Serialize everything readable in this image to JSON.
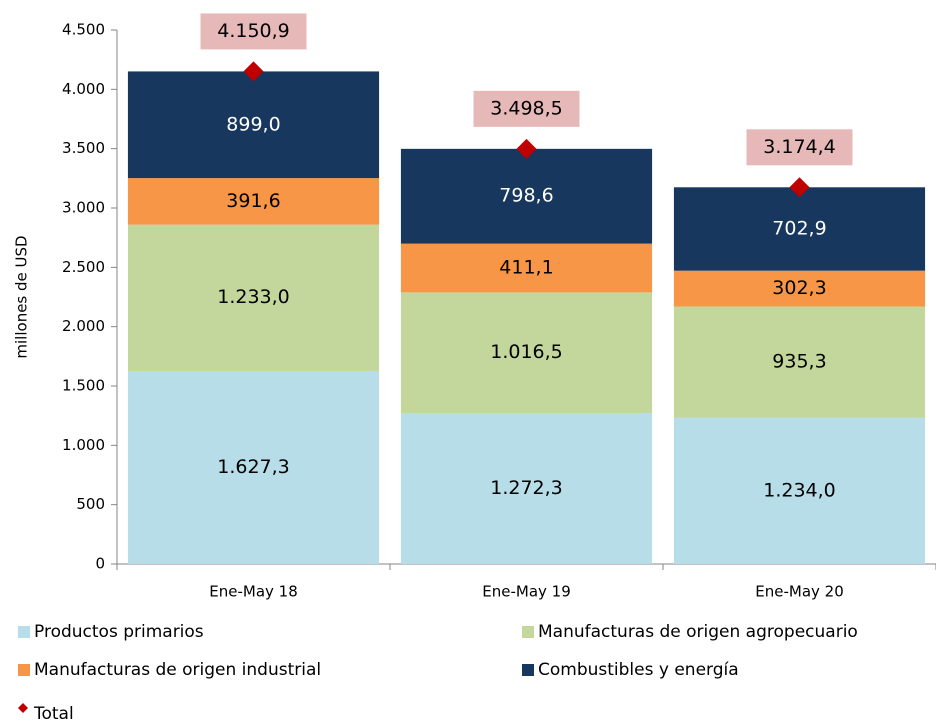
{
  "chart_data": {
    "type": "bar",
    "stacked": true,
    "y_label": "millones de USD",
    "categories": [
      "Ene-May 18",
      "Ene-May 19",
      "Ene-May 20"
    ],
    "ylim": [
      0,
      4500
    ],
    "yticks": [
      0,
      500,
      {
        "value": 1000,
        "label": "1.000"
      },
      {
        "value": 1500,
        "label": "1.500"
      },
      {
        "value": 2000,
        "label": "2.000"
      },
      {
        "value": 2500,
        "label": "2.500"
      },
      {
        "value": 3000,
        "label": "3.000"
      },
      {
        "value": 3500,
        "label": "3.500"
      },
      {
        "value": 4000,
        "label": "4.000"
      },
      {
        "value": 4500,
        "label": "4.500"
      }
    ],
    "series": [
      {
        "name": "Productos primarios",
        "color": "#b7dde8",
        "values": [
          1627.3,
          1272.3,
          1234.0
        ],
        "value_labels": [
          "1.627,3",
          "1.272,3",
          "1.234,0"
        ]
      },
      {
        "name": "Manufacturas de origen agropecuario",
        "color": "#c3d69b",
        "values": [
          1233.0,
          1016.5,
          935.3
        ],
        "value_labels": [
          "1.233,0",
          "1.016,5",
          "935,3"
        ]
      },
      {
        "name": "Manufacturas de origen industrial",
        "color": "#f79646",
        "values": [
          391.6,
          411.1,
          302.3
        ],
        "value_labels": [
          "391,6",
          "411,1",
          "302,3"
        ]
      },
      {
        "name": "Combustibles y energía",
        "color": "#17375e",
        "values": [
          899.0,
          798.6,
          702.9
        ],
        "value_labels": [
          "899,0",
          "798,6",
          "702,9"
        ]
      },
      {
        "name": "Total",
        "color": "#c00000",
        "marker": "diamond",
        "label_box": "#e6b9b8",
        "values": [
          4150.9,
          3498.5,
          3174.4
        ],
        "value_labels": [
          "4.150,9",
          "3.498,5",
          "3.174,4"
        ]
      }
    ]
  }
}
